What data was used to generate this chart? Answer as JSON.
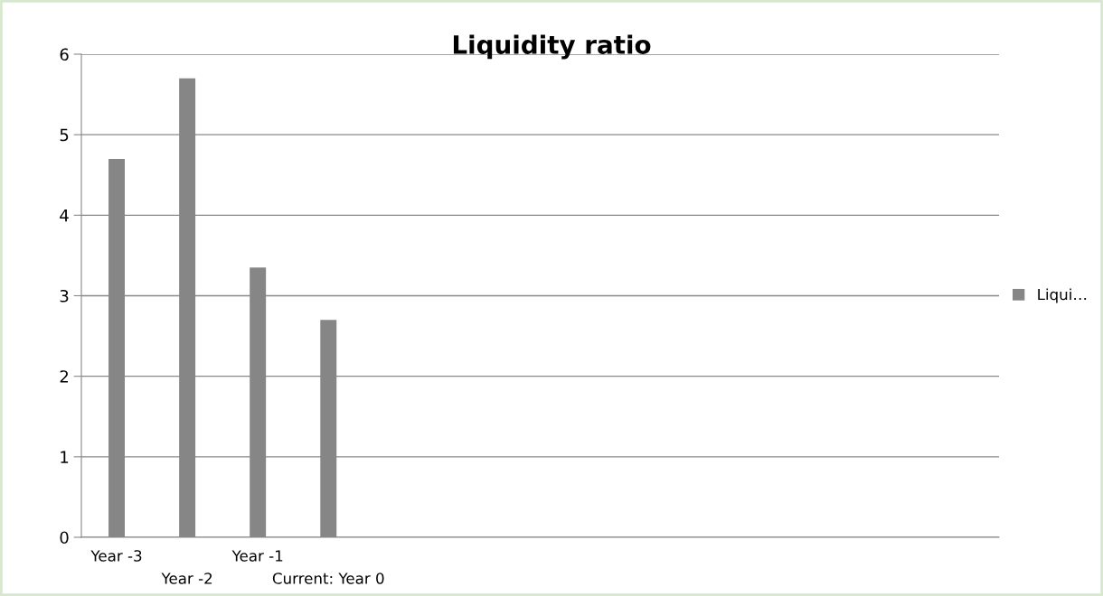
{
  "chart_data": {
    "type": "bar",
    "title": "Liquidity ratio",
    "categories": [
      "Year -3",
      "Year -2",
      "Year -1",
      "Current: Year 0",
      null,
      null,
      null,
      null,
      null,
      null,
      null,
      null,
      null
    ],
    "series": [
      {
        "name": "Liqui…",
        "color": "#868686",
        "values": [
          4.7,
          5.7,
          3.35,
          2.7,
          null,
          null,
          null,
          null,
          null,
          null,
          null,
          null,
          null
        ]
      }
    ],
    "ylim": [
      0,
      6
    ],
    "yticks": [
      0,
      1,
      2,
      3,
      4,
      5,
      6
    ],
    "grid": "y",
    "legend": "right"
  }
}
